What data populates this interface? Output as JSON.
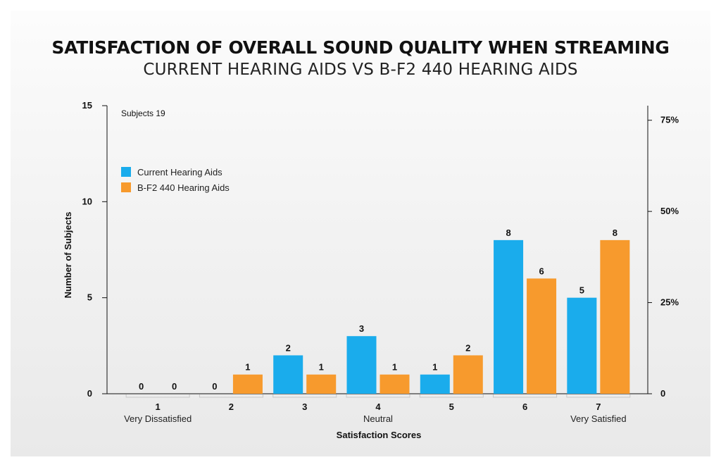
{
  "colors": {
    "current": "#1aacec",
    "bf2": "#f79a2d",
    "axis": "#111111"
  },
  "chart_data": {
    "type": "bar",
    "title": "SATISFACTION OF OVERALL SOUND QUALITY WHEN STREAMING",
    "subtitle": "CURRENT HEARING AIDS VS B-F2 440 HEARING AIDS",
    "note": "Subjects 19",
    "xlabel": "Satisfaction Scores",
    "ylabel": "Number of Subjects",
    "categories": [
      "1",
      "2",
      "3",
      "4",
      "5",
      "6",
      "7"
    ],
    "category_sublabels": [
      "Very Dissatisfied",
      "",
      "",
      "Neutral",
      "",
      "",
      "Very Satisfied"
    ],
    "series": [
      {
        "name": "Current Hearing Aids",
        "values": [
          0,
          0,
          2,
          3,
          1,
          8,
          5
        ]
      },
      {
        "name": "B-F2 440 Hearing Aids",
        "values": [
          0,
          1,
          1,
          1,
          2,
          6,
          8
        ]
      }
    ],
    "ylim": [
      0,
      15
    ],
    "yticks": [
      "0",
      "5",
      "10",
      "15"
    ],
    "y2ticks": [
      {
        "value": 0,
        "label": "0"
      },
      {
        "value": 25,
        "label": "25%"
      },
      {
        "value": 50,
        "label": "50%"
      },
      {
        "value": 75,
        "label": "75%"
      }
    ],
    "y2lim": [
      0,
      79
    ],
    "legend": "upper-left",
    "grid": false
  }
}
